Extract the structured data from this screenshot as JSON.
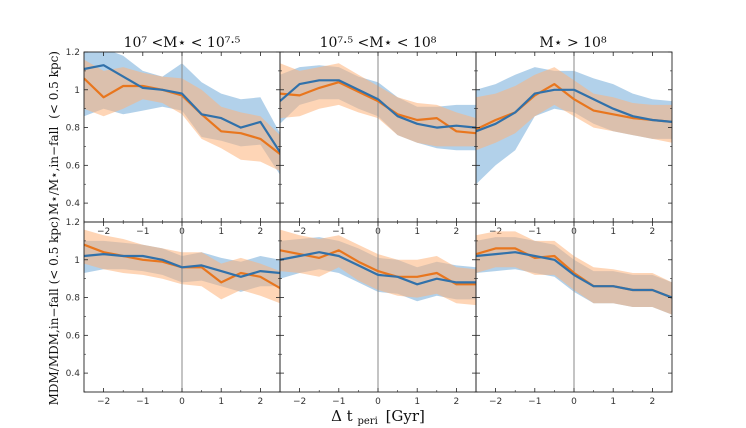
{
  "colors": {
    "blue_line": "#3171aa",
    "blue_band": "#7eb3dc",
    "orange_line": "#e8761e",
    "orange_band": "#fdb27a",
    "axes": "#222222",
    "vline": "#8a8a8a"
  },
  "figure": {
    "xlabel": "Δ t_peri [Gyr]",
    "xlabel_main": "Δ t",
    "xlabel_sub": "peri",
    "xlabel_unit": "[Gyr]",
    "row_labels": [
      {
        "text": "M⋆/M⋆,in−fall (< 0.5 kpc)",
        "main": "M⋆/M⋆,in−fall",
        "paren": "(< 0.5 kpc)"
      },
      {
        "text": "MDM/MDM,in−fall(< 0.5 kpc)",
        "main": "MDM/MDM,in−fall",
        "paren": "(< 0.5 kpc)"
      }
    ],
    "column_titles": [
      "10⁷ <M⋆ < 10⁷·⁵",
      "10⁷·⁵ <M⋆ < 10⁸",
      "M⋆ > 10⁸"
    ]
  },
  "chart_data": [
    {
      "type": "line",
      "panel": "top-left",
      "title": "10⁷ <M⋆ < 10⁷·⁵",
      "xlim": [
        -2.5,
        2.5
      ],
      "ylim": [
        0.3,
        1.2
      ],
      "x_ticks": [
        -2,
        -1,
        0,
        1,
        2
      ],
      "y_ticks": [
        0.4,
        0.6,
        0.8,
        1.0,
        1.2
      ],
      "ylabel": "M⋆/M⋆,in−fall (< 0.5 kpc)",
      "series": [
        {
          "name": "orange",
          "x": [
            -2.5,
            -2,
            -1.5,
            -1,
            -0.5,
            0,
            0.5,
            1,
            1.5,
            2,
            2.5
          ],
          "values": [
            1.06,
            0.96,
            1.02,
            1.02,
            1.0,
            0.97,
            0.87,
            0.78,
            0.77,
            0.74,
            0.66
          ],
          "lower": [
            0.9,
            0.86,
            0.9,
            0.95,
            0.93,
            0.87,
            0.74,
            0.69,
            0.63,
            0.62,
            0.57
          ],
          "upper": [
            1.16,
            1.1,
            1.12,
            1.09,
            1.07,
            1.06,
            1.0,
            0.91,
            0.88,
            0.86,
            0.76
          ]
        },
        {
          "name": "blue",
          "x": [
            -2.5,
            -2,
            -1.5,
            -1,
            -0.5,
            0,
            0.5,
            1,
            1.5,
            2,
            2.5
          ],
          "values": [
            1.11,
            1.13,
            1.07,
            1.01,
            1.0,
            0.98,
            0.87,
            0.85,
            0.8,
            0.83,
            0.67
          ],
          "lower": [
            0.86,
            0.9,
            0.87,
            0.89,
            0.91,
            0.89,
            0.75,
            0.73,
            0.7,
            0.71,
            0.55
          ],
          "upper": [
            1.25,
            1.22,
            1.18,
            1.1,
            1.07,
            1.14,
            1.04,
            0.98,
            0.95,
            0.96,
            0.77
          ]
        }
      ]
    },
    {
      "type": "line",
      "panel": "top-middle",
      "title": "10⁷·⁵ <M⋆ < 10⁸",
      "xlim": [
        -2.5,
        2.5
      ],
      "ylim": [
        0.3,
        1.2
      ],
      "x_ticks": [
        -2,
        -1,
        0,
        1,
        2
      ],
      "y_ticks": [
        0.4,
        0.6,
        0.8,
        1.0,
        1.2
      ],
      "series": [
        {
          "name": "orange",
          "x": [
            -2.5,
            -2,
            -1.5,
            -1,
            -0.5,
            0,
            0.5,
            1,
            1.5,
            2,
            2.5
          ],
          "values": [
            0.98,
            0.97,
            1.01,
            1.04,
            0.99,
            0.94,
            0.87,
            0.84,
            0.85,
            0.78,
            0.77
          ],
          "lower": [
            0.85,
            0.86,
            0.9,
            0.92,
            0.88,
            0.85,
            0.76,
            0.72,
            0.7,
            0.7,
            0.7
          ],
          "upper": [
            1.14,
            1.1,
            1.12,
            1.14,
            1.08,
            1.02,
            0.96,
            0.93,
            0.92,
            0.88,
            0.85
          ]
        },
        {
          "name": "blue",
          "x": [
            -2.5,
            -2,
            -1.5,
            -1,
            -0.5,
            0,
            0.5,
            1,
            1.5,
            2,
            2.5
          ],
          "values": [
            0.94,
            1.03,
            1.05,
            1.05,
            1.0,
            0.95,
            0.86,
            0.82,
            0.8,
            0.81,
            0.8
          ],
          "lower": [
            0.82,
            0.92,
            0.95,
            0.95,
            0.9,
            0.86,
            0.76,
            0.72,
            0.69,
            0.68,
            0.68
          ],
          "upper": [
            1.08,
            1.12,
            1.13,
            1.12,
            1.07,
            1.04,
            0.96,
            0.91,
            0.91,
            0.92,
            0.92
          ]
        }
      ]
    },
    {
      "type": "line",
      "panel": "top-right",
      "title": "M⋆ > 10⁸",
      "xlim": [
        -2.5,
        2.5
      ],
      "ylim": [
        0.3,
        1.2
      ],
      "x_ticks": [
        -2,
        -1,
        0,
        1,
        2
      ],
      "y_ticks": [
        0.4,
        0.6,
        0.8,
        1.0,
        1.2
      ],
      "series": [
        {
          "name": "orange",
          "x": [
            -2.5,
            -2,
            -1.5,
            -1,
            -0.5,
            0,
            0.5,
            1,
            1.5,
            2,
            2.5
          ],
          "values": [
            0.79,
            0.84,
            0.88,
            0.97,
            1.03,
            0.95,
            0.89,
            0.87,
            0.85,
            0.84,
            0.83
          ],
          "lower": [
            0.68,
            0.72,
            0.77,
            0.86,
            0.92,
            0.86,
            0.8,
            0.78,
            0.76,
            0.74,
            0.72
          ],
          "upper": [
            0.96,
            0.98,
            1.02,
            1.08,
            1.12,
            1.05,
            0.98,
            0.96,
            0.93,
            0.92,
            0.92
          ]
        },
        {
          "name": "blue",
          "x": [
            -2.5,
            -2,
            -1.5,
            -1,
            -0.5,
            0,
            0.5,
            1,
            1.5,
            2,
            2.5
          ],
          "values": [
            0.78,
            0.82,
            0.88,
            0.98,
            1.0,
            1.0,
            0.95,
            0.9,
            0.86,
            0.84,
            0.83
          ],
          "lower": [
            0.5,
            0.6,
            0.68,
            0.86,
            0.9,
            0.88,
            0.82,
            0.78,
            0.76,
            0.74,
            0.74
          ],
          "upper": [
            1.0,
            1.03,
            1.08,
            1.12,
            1.1,
            1.1,
            1.06,
            1.03,
            0.98,
            0.95,
            0.94
          ]
        }
      ]
    },
    {
      "type": "line",
      "panel": "bottom-left",
      "xlim": [
        -2.5,
        2.5
      ],
      "ylim": [
        0.3,
        1.2
      ],
      "x_ticks": [
        -2,
        -1,
        0,
        1,
        2
      ],
      "y_ticks": [
        0.4,
        0.6,
        0.8,
        1.0,
        1.2
      ],
      "ylabel": "MDM/MDM,in−fall(< 0.5 kpc)",
      "series": [
        {
          "name": "orange",
          "x": [
            -2.5,
            -2,
            -1.5,
            -1,
            -0.5,
            0,
            0.5,
            1,
            1.5,
            2,
            2.5
          ],
          "values": [
            1.08,
            1.04,
            1.02,
            1.0,
            0.99,
            0.96,
            0.96,
            0.88,
            0.93,
            0.91,
            0.85
          ],
          "lower": [
            0.98,
            0.95,
            0.93,
            0.92,
            0.9,
            0.87,
            0.86,
            0.79,
            0.84,
            0.81,
            0.77
          ],
          "upper": [
            1.16,
            1.13,
            1.11,
            1.08,
            1.06,
            1.04,
            1.04,
            0.98,
            1.01,
            0.98,
            0.94
          ]
        },
        {
          "name": "blue",
          "x": [
            -2.5,
            -2,
            -1.5,
            -1,
            -0.5,
            0,
            0.5,
            1,
            1.5,
            2,
            2.5
          ],
          "values": [
            1.02,
            1.03,
            1.02,
            1.02,
            1.0,
            0.96,
            0.97,
            0.94,
            0.91,
            0.94,
            0.93
          ],
          "lower": [
            0.93,
            0.95,
            0.95,
            0.94,
            0.92,
            0.88,
            0.89,
            0.86,
            0.83,
            0.86,
            0.86
          ],
          "upper": [
            1.1,
            1.1,
            1.09,
            1.08,
            1.06,
            1.02,
            1.04,
            1.01,
            0.99,
            1.02,
            1.0
          ]
        }
      ]
    },
    {
      "type": "line",
      "panel": "bottom-middle",
      "xlim": [
        -2.5,
        2.5
      ],
      "ylim": [
        0.3,
        1.2
      ],
      "x_ticks": [
        -2,
        -1,
        0,
        1,
        2
      ],
      "y_ticks": [
        0.4,
        0.6,
        0.8,
        1.0,
        1.2
      ],
      "series": [
        {
          "name": "orange",
          "x": [
            -2.5,
            -2,
            -1.5,
            -1,
            -0.5,
            0,
            0.5,
            1,
            1.5,
            2,
            2.5
          ],
          "values": [
            1.05,
            1.03,
            1.01,
            1.05,
            0.99,
            0.94,
            0.91,
            0.91,
            0.93,
            0.87,
            0.87
          ],
          "lower": [
            0.94,
            0.93,
            0.91,
            0.96,
            0.89,
            0.84,
            0.81,
            0.8,
            0.82,
            0.77,
            0.76
          ],
          "upper": [
            1.16,
            1.13,
            1.11,
            1.13,
            1.08,
            1.03,
            1.0,
            1.0,
            1.02,
            0.96,
            0.95
          ]
        },
        {
          "name": "blue",
          "x": [
            -2.5,
            -2,
            -1.5,
            -1,
            -0.5,
            0,
            0.5,
            1,
            1.5,
            2,
            2.5
          ],
          "values": [
            1.0,
            1.02,
            1.04,
            1.02,
            0.97,
            0.92,
            0.91,
            0.87,
            0.9,
            0.88,
            0.88
          ],
          "lower": [
            0.9,
            0.93,
            0.95,
            0.93,
            0.88,
            0.83,
            0.82,
            0.78,
            0.81,
            0.79,
            0.79
          ],
          "upper": [
            1.1,
            1.11,
            1.12,
            1.1,
            1.06,
            1.01,
            1.0,
            0.96,
            0.99,
            0.97,
            0.96
          ]
        }
      ]
    },
    {
      "type": "line",
      "panel": "bottom-right",
      "xlim": [
        -2.5,
        2.5
      ],
      "ylim": [
        0.3,
        1.2
      ],
      "x_ticks": [
        -2,
        -1,
        0,
        1,
        2
      ],
      "y_ticks": [
        0.4,
        0.6,
        0.8,
        1.0,
        1.2
      ],
      "series": [
        {
          "name": "orange",
          "x": [
            -2.5,
            -2,
            -1.5,
            -1,
            -0.5,
            0,
            0.5,
            1,
            1.5,
            2,
            2.5
          ],
          "values": [
            1.03,
            1.06,
            1.06,
            1.01,
            1.02,
            0.93,
            0.86,
            0.86,
            0.84,
            0.84,
            0.8
          ],
          "lower": [
            0.93,
            0.96,
            0.96,
            0.92,
            0.92,
            0.84,
            0.77,
            0.77,
            0.75,
            0.75,
            0.71
          ],
          "upper": [
            1.13,
            1.15,
            1.15,
            1.1,
            1.1,
            1.02,
            0.96,
            0.95,
            0.93,
            0.93,
            0.88
          ]
        },
        {
          "name": "blue",
          "x": [
            -2.5,
            -2,
            -1.5,
            -1,
            -0.5,
            0,
            0.5,
            1,
            1.5,
            2,
            2.5
          ],
          "values": [
            1.02,
            1.03,
            1.04,
            1.02,
            1.0,
            0.92,
            0.86,
            0.86,
            0.84,
            0.84,
            0.8
          ],
          "lower": [
            0.93,
            0.94,
            0.95,
            0.93,
            0.91,
            0.83,
            0.77,
            0.77,
            0.75,
            0.75,
            0.71
          ],
          "upper": [
            1.1,
            1.12,
            1.12,
            1.1,
            1.08,
            1.0,
            0.94,
            0.94,
            0.92,
            0.92,
            0.88
          ]
        }
      ]
    }
  ]
}
